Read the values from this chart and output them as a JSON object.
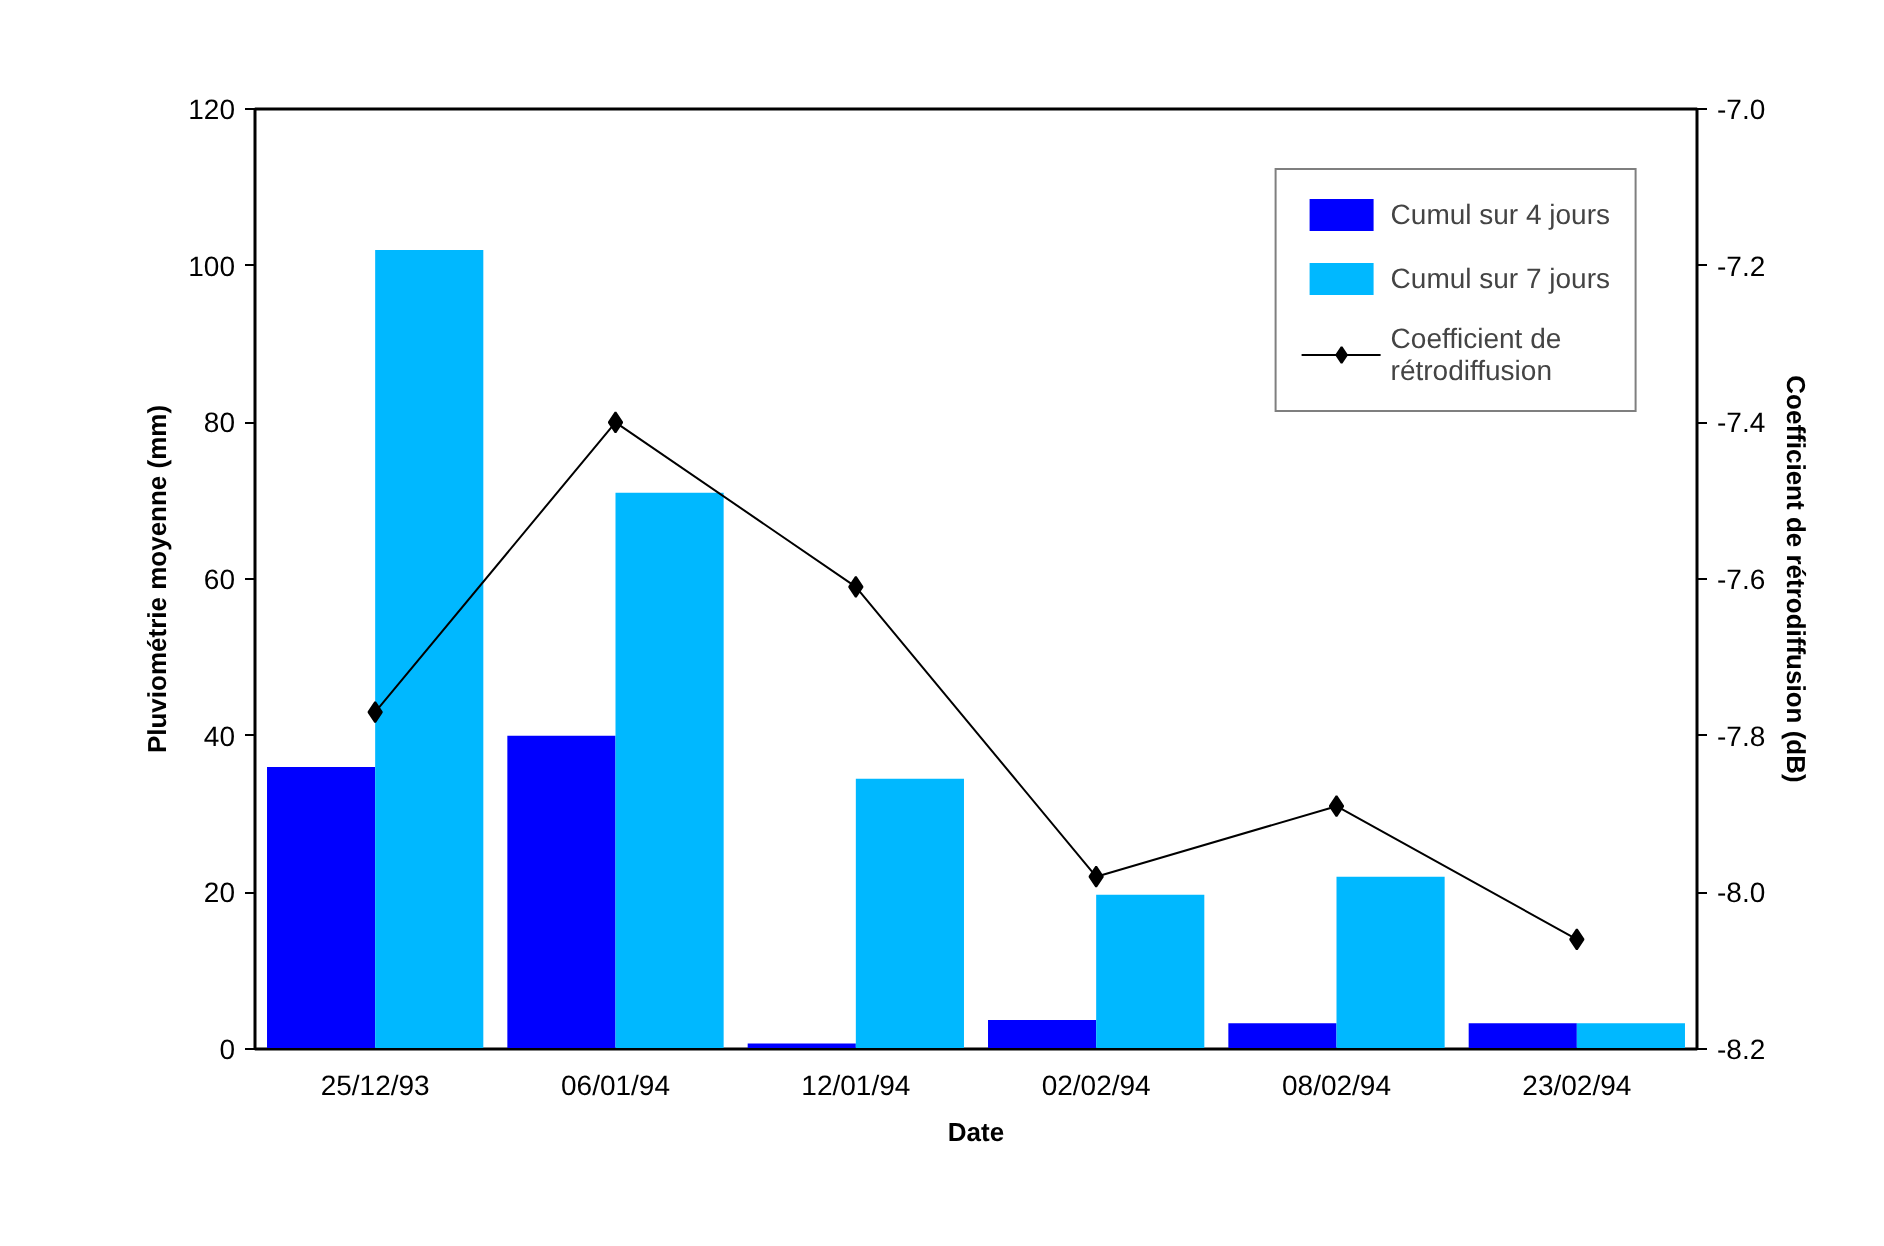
{
  "chart_data": {
    "type": "bar",
    "categories": [
      "25/12/93",
      "06/01/94",
      "12/01/94",
      "02/02/94",
      "08/02/94",
      "23/02/94"
    ],
    "xlabel": "Date",
    "ylabel": "Pluviométrie moyenne (mm)",
    "y2label": "Coefficient de rétrodiffusion (dB)",
    "ylim": [
      0,
      120
    ],
    "yticks": [
      0,
      20,
      40,
      60,
      80,
      100,
      120
    ],
    "y2lim": [
      -8.2,
      -7.0
    ],
    "y2ticks": [
      {
        "value": -8.2,
        "label": "-8.2"
      },
      {
        "value": -8.0,
        "label": "-8.0"
      },
      {
        "value": -7.8,
        "label": "-7.8"
      },
      {
        "value": -7.6,
        "label": "-7.6"
      },
      {
        "value": -7.4,
        "label": "-7.4"
      },
      {
        "value": -7.2,
        "label": "-7.2"
      },
      {
        "value": -7.0,
        "label": "-7.0"
      }
    ],
    "grid": false,
    "legend": "top right",
    "series": [
      {
        "name": "Cumul sur 4 jours",
        "color": "#0000ff",
        "values": [
          36,
          40,
          0.7,
          3.7,
          3.3,
          3.3
        ]
      },
      {
        "name": "Cumul sur 7 jours",
        "color": "#00b8ff",
        "values": [
          102,
          71,
          34.5,
          19.7,
          22.0,
          3.3
        ]
      },
      {
        "name": "Coefficient de rétrodiffusion",
        "type": "line",
        "axis": "y2",
        "marker": "diamond",
        "line_style": "solid",
        "color": "#000000",
        "values": [
          -7.77,
          -7.4,
          -7.61,
          -7.98,
          -7.89,
          -8.06
        ]
      }
    ]
  }
}
